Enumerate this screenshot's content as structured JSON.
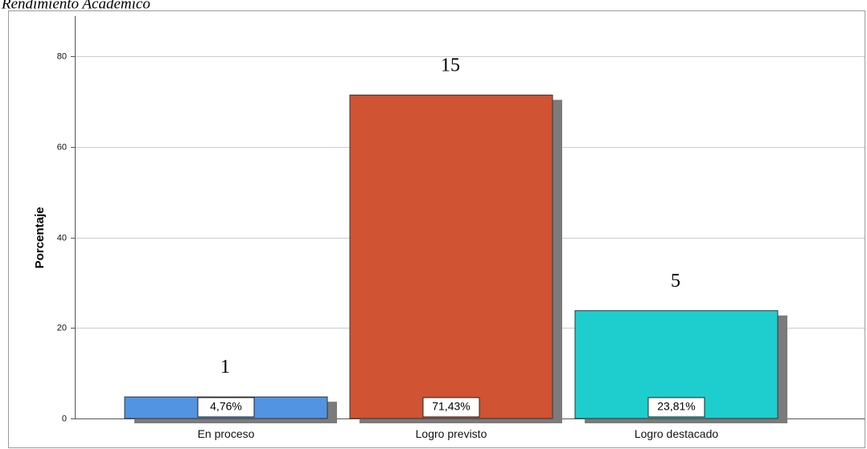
{
  "header": {
    "title": "Rendimiento Académico"
  },
  "chart_data": {
    "type": "bar",
    "categories": [
      "En proceso",
      "Logro previsto",
      "Logro destacado"
    ],
    "values": [
      4.76,
      71.43,
      23.81
    ],
    "value_labels": [
      "4,76%",
      "71,43%",
      "23,81%"
    ],
    "counts": [
      "1",
      "15",
      "5"
    ],
    "colors": [
      "#5294e2",
      "#d05333",
      "#1ecece"
    ],
    "shadow_color": "#7b7b7b",
    "xlabel": "",
    "ylabel": "Porcentaje",
    "ylim": [
      0,
      88
    ],
    "yticks": [
      0,
      20,
      40,
      60,
      80
    ],
    "grid": true
  }
}
